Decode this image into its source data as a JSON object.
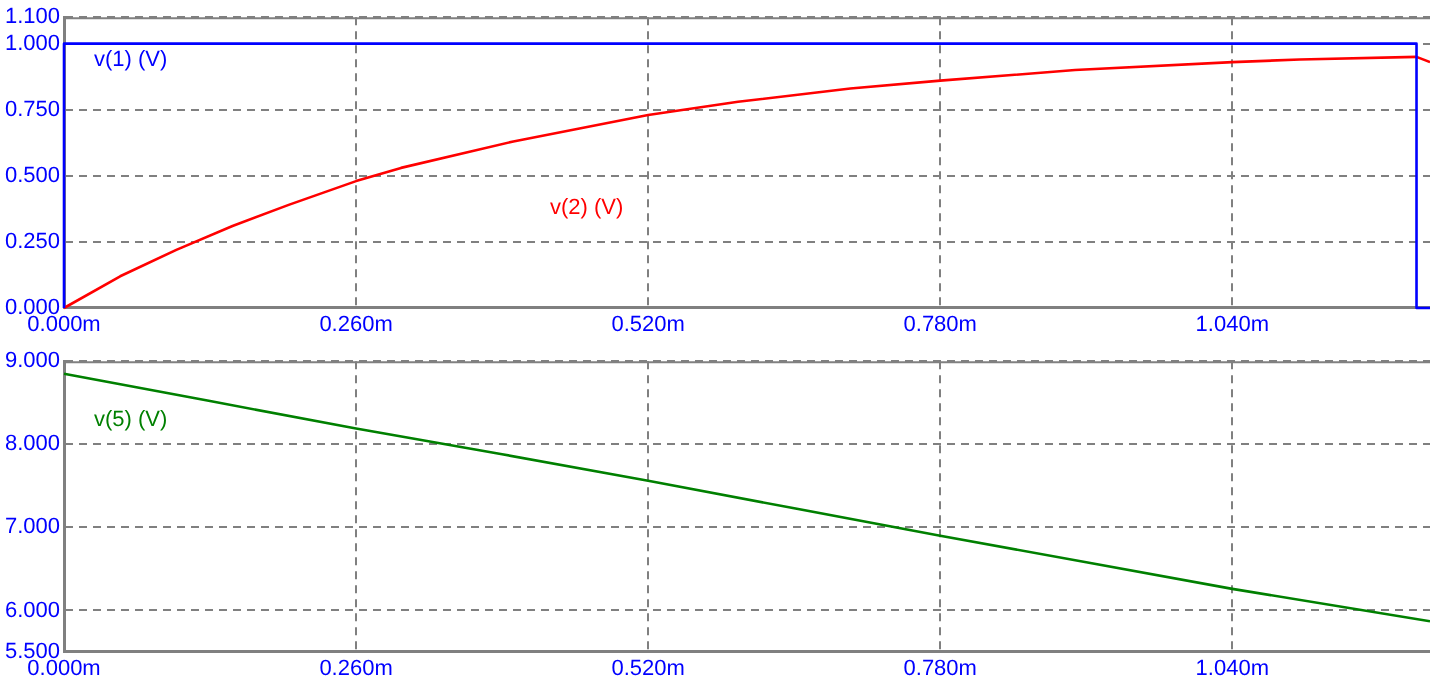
{
  "chart_data": [
    {
      "type": "line",
      "xlim": [
        0,
        1.216
      ],
      "ylim": [
        0,
        1.1
      ],
      "xticks": [
        {
          "value": 0,
          "label": "0.000m"
        },
        {
          "value": 0.26,
          "label": "0.260m"
        },
        {
          "value": 0.52,
          "label": "0.520m"
        },
        {
          "value": 0.78,
          "label": "0.780m"
        },
        {
          "value": 1.04,
          "label": "1.040m"
        }
      ],
      "yticks": [
        {
          "value": 0,
          "label": "0.000"
        },
        {
          "value": 0.25,
          "label": "0.250"
        },
        {
          "value": 0.5,
          "label": "0.500"
        },
        {
          "value": 0.75,
          "label": "0.750"
        },
        {
          "value": 1,
          "label": "1.000"
        },
        {
          "value": 1.1,
          "label": "1.100"
        }
      ],
      "grid": true,
      "series": [
        {
          "name": "v(1) (V)",
          "color": "#0000ff",
          "x": [
            0,
            0,
            1.204,
            1.204,
            1.216
          ],
          "values": [
            0,
            1,
            1,
            0,
            0
          ]
        },
        {
          "name": "v(2) (V)",
          "color": "#ff0000",
          "x": [
            0,
            0.05,
            0.1,
            0.15,
            0.2,
            0.26,
            0.3,
            0.4,
            0.52,
            0.6,
            0.7,
            0.78,
            0.9,
            1.04,
            1.1,
            1.204,
            1.216
          ],
          "values": [
            0,
            0.12,
            0.22,
            0.31,
            0.39,
            0.48,
            0.53,
            0.63,
            0.73,
            0.78,
            0.83,
            0.86,
            0.9,
            0.93,
            0.94,
            0.95,
            0.93
          ]
        }
      ]
    },
    {
      "type": "line",
      "xlim": [
        0,
        1.216
      ],
      "ylim": [
        5.5,
        9
      ],
      "xticks": [
        {
          "value": 0,
          "label": "0.000m"
        },
        {
          "value": 0.26,
          "label": "0.260m"
        },
        {
          "value": 0.52,
          "label": "0.520m"
        },
        {
          "value": 0.78,
          "label": "0.780m"
        },
        {
          "value": 1.04,
          "label": "1.040m"
        }
      ],
      "yticks": [
        {
          "value": 5.5,
          "label": "5.500"
        },
        {
          "value": 6,
          "label": "6.000"
        },
        {
          "value": 7,
          "label": "7.000"
        },
        {
          "value": 8,
          "label": "8.000"
        },
        {
          "value": 9,
          "label": "9.000"
        }
      ],
      "grid": true,
      "series": [
        {
          "name": "v(5) (V)",
          "color": "#008000",
          "x": [
            0,
            0.13,
            0.26,
            0.39,
            0.52,
            0.65,
            0.78,
            0.91,
            1.04,
            1.216
          ],
          "values": [
            8.85,
            8.52,
            8.19,
            7.88,
            7.56,
            7.23,
            6.9,
            6.58,
            6.26,
            5.87
          ]
        }
      ]
    }
  ]
}
